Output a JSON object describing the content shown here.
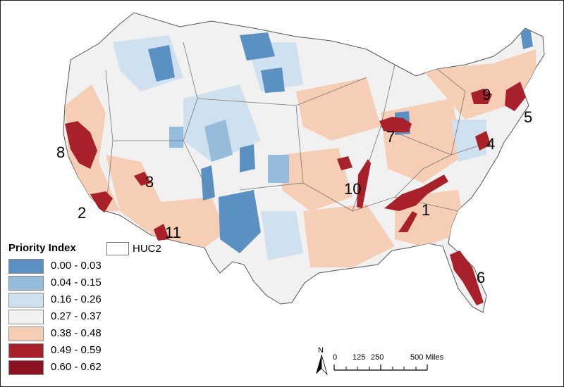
{
  "legend": {
    "title": "Priority Index",
    "boundary_label": "HUC2",
    "classes": [
      {
        "label": "0.00 - 0.03",
        "color": "#5a91c2"
      },
      {
        "label": "0.04 - 0.15",
        "color": "#95bddb"
      },
      {
        "label": "0.16 - 0.26",
        "color": "#cfe1ef"
      },
      {
        "label": "0.27 - 0.37",
        "color": "#f1f1f1"
      },
      {
        "label": "0.38 - 0.48",
        "color": "#f6cdb5"
      },
      {
        "label": "0.49 - 0.59",
        "color": "#a8202a"
      },
      {
        "label": "0.60 - 0.62",
        "color": "#8c1422"
      }
    ]
  },
  "hotspots": [
    "1",
    "2",
    "3",
    "4",
    "5",
    "6",
    "7",
    "8",
    "9",
    "10",
    "11"
  ],
  "scale": {
    "north": "N",
    "ticks": [
      "0",
      "125",
      "250",
      "500 Miles"
    ]
  }
}
